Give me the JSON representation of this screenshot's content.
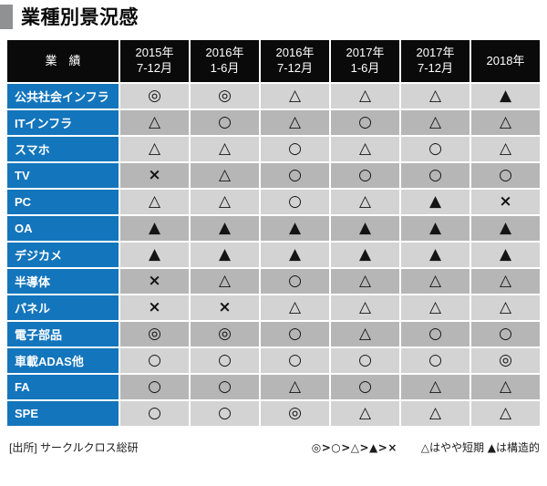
{
  "title": "業種別景況感",
  "table": {
    "corner_label": "業　績",
    "columns": [
      {
        "line1": "2015年",
        "line2": "7-12月"
      },
      {
        "line1": "2016年",
        "line2": "1-6月"
      },
      {
        "line1": "2016年",
        "line2": "7-12月"
      },
      {
        "line1": "2017年",
        "line2": "1-6月"
      },
      {
        "line1": "2017年",
        "line2": "7-12月"
      },
      {
        "line1": "2018年",
        "line2": ""
      }
    ],
    "rows": [
      {
        "label": "公共社会インフラ",
        "values": [
          "◎",
          "◎",
          "△",
          "△",
          "△",
          "▲"
        ]
      },
      {
        "label": "ITインフラ",
        "values": [
          "△",
          "○",
          "△",
          "○",
          "△",
          "△"
        ]
      },
      {
        "label": "スマホ",
        "values": [
          "△",
          "△",
          "○",
          "△",
          "○",
          "△"
        ]
      },
      {
        "label": "TV",
        "values": [
          "×",
          "△",
          "○",
          "○",
          "○",
          "○"
        ]
      },
      {
        "label": "PC",
        "values": [
          "△",
          "△",
          "○",
          "△",
          "▲",
          "×"
        ]
      },
      {
        "label": "OA",
        "values": [
          "▲",
          "▲",
          "▲",
          "▲",
          "▲",
          "▲"
        ]
      },
      {
        "label": "デジカメ",
        "values": [
          "▲",
          "▲",
          "▲",
          "▲",
          "▲",
          "▲"
        ]
      },
      {
        "label": "半導体",
        "values": [
          "×",
          "△",
          "○",
          "△",
          "△",
          "△"
        ]
      },
      {
        "label": "パネル",
        "values": [
          "×",
          "×",
          "△",
          "△",
          "△",
          "△"
        ]
      },
      {
        "label": "電子部品",
        "values": [
          "◎",
          "◎",
          "○",
          "△",
          "○",
          "○"
        ]
      },
      {
        "label": "車載ADAS他",
        "values": [
          "○",
          "○",
          "○",
          "○",
          "○",
          "◎"
        ]
      },
      {
        "label": "FA",
        "values": [
          "○",
          "○",
          "△",
          "○",
          "△",
          "△"
        ]
      },
      {
        "label": "SPE",
        "values": [
          "○",
          "○",
          "◎",
          "△",
          "△",
          "△"
        ]
      }
    ]
  },
  "footer": {
    "source": "[出所] サークルクロス総研",
    "legend_order": "◎>○>△>▲>×",
    "legend_note": "△はやや短期 ▲は構造的"
  },
  "colors": {
    "header_bg": "#0a0a0a",
    "label_bg": "#1375bc",
    "row_light": "#d3d3d4",
    "row_dark": "#b6b6b7",
    "title_square": "#909192"
  }
}
